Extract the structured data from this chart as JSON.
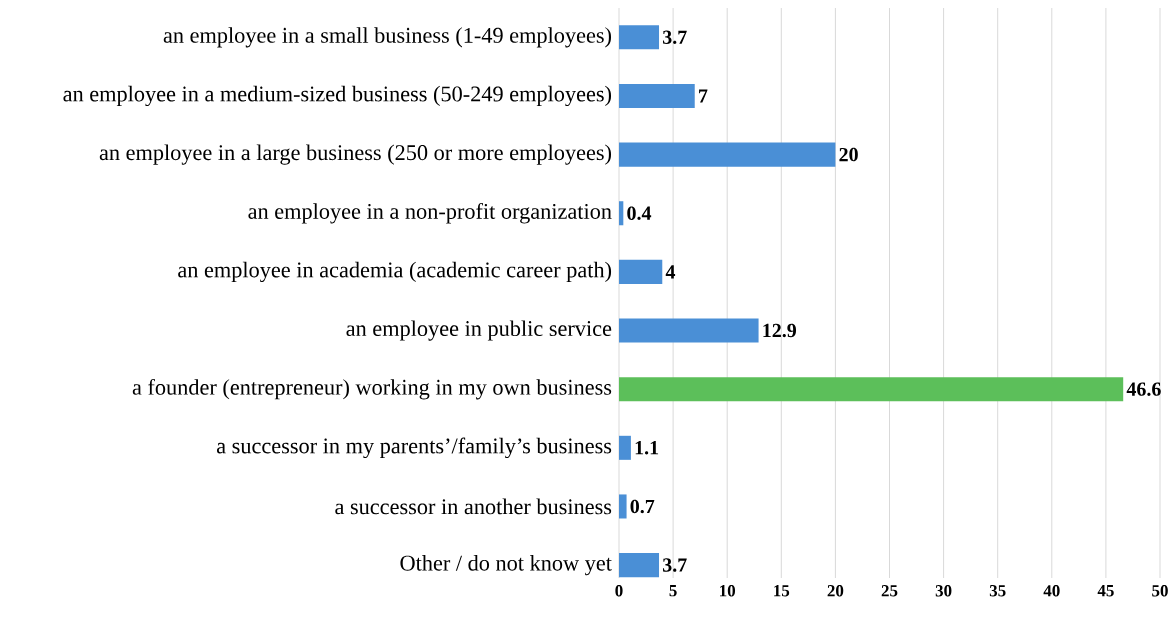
{
  "chart_data": {
    "type": "bar",
    "orientation": "horizontal",
    "categories": [
      "an employee in a small business (1-49 employees)",
      "an employee in a medium-sized business (50-249 employees)",
      "an employee in a large business (250 or more employees)",
      "an employee in a non-profit organization",
      "an employee in academia (academic career path)",
      "an employee in public service",
      "a founder (entrepreneur) working in my own business",
      "a successor in my parents’/family’s business",
      "a successor in another business",
      "Other / do not know yet"
    ],
    "values": [
      3.7,
      7,
      20,
      0.4,
      4,
      12.9,
      46.6,
      1.1,
      0.7,
      3.7
    ],
    "colors": [
      "#4a8fd6",
      "#4a8fd6",
      "#4a8fd6",
      "#4a8fd6",
      "#4a8fd6",
      "#4a8fd6",
      "#5cbf5a",
      "#4a8fd6",
      "#4a8fd6",
      "#4a8fd6"
    ],
    "xlim": [
      0,
      50
    ],
    "xticks": [
      0,
      5,
      10,
      15,
      20,
      25,
      30,
      35,
      40,
      45,
      50
    ],
    "grid": "x",
    "data_labels": true
  }
}
